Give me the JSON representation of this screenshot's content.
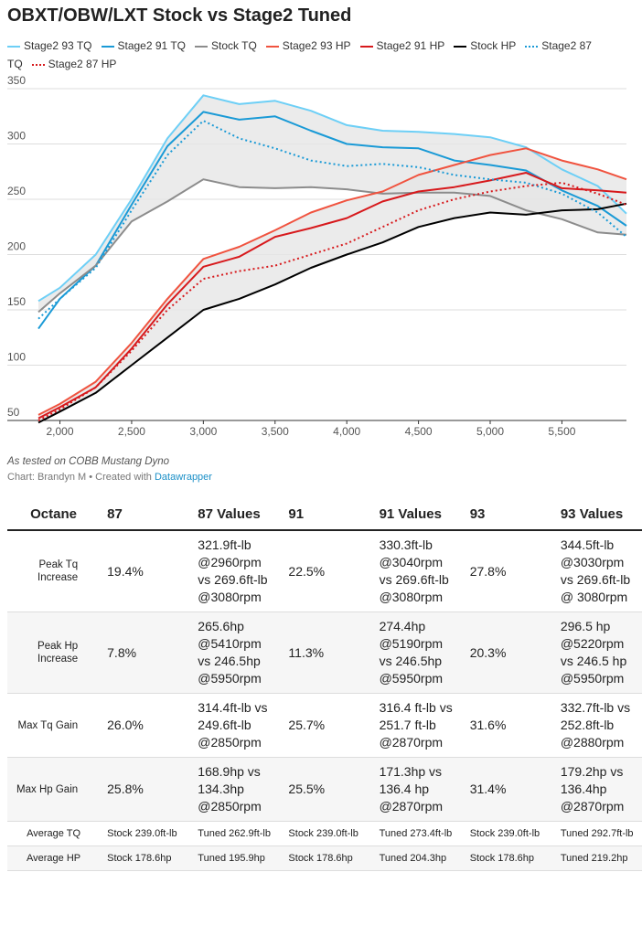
{
  "chart_data": {
    "type": "line",
    "title": "OBXT/OBW/LXT Stock vs Stage2 Tuned",
    "x": [
      1850,
      2000,
      2250,
      2500,
      2750,
      3000,
      3250,
      3500,
      3750,
      4000,
      4250,
      4500,
      4750,
      5000,
      5250,
      5500,
      5750,
      5950
    ],
    "series": [
      {
        "name": "Stage2 93 TQ",
        "color": "#6dcff6",
        "style": "solid",
        "values": [
          158,
          170,
          200,
          250,
          305,
          344,
          336,
          339,
          330,
          317,
          312,
          311,
          309,
          306,
          297,
          277,
          262,
          237
        ]
      },
      {
        "name": "Stage2 91 TQ",
        "color": "#1a9ad6",
        "style": "solid",
        "values": [
          133,
          160,
          190,
          245,
          298,
          329,
          322,
          325,
          312,
          300,
          297,
          296,
          285,
          281,
          276,
          258,
          244,
          226
        ]
      },
      {
        "name": "Stock TQ",
        "color": "#8c8c8c",
        "style": "solid",
        "values": [
          148,
          165,
          190,
          230,
          248,
          268,
          261,
          260,
          261,
          259,
          255,
          256,
          256,
          253,
          240,
          232,
          220,
          218
        ]
      },
      {
        "name": "Stage2 93 HP",
        "color": "#f0533f",
        "style": "solid",
        "values": [
          55,
          65,
          85,
          120,
          160,
          196,
          207,
          222,
          238,
          249,
          257,
          272,
          281,
          290,
          296,
          285,
          277,
          268
        ]
      },
      {
        "name": "Stage2 91 HP",
        "color": "#d7191c",
        "style": "solid",
        "values": [
          52,
          62,
          80,
          115,
          155,
          189,
          198,
          216,
          224,
          233,
          248,
          257,
          261,
          267,
          274,
          260,
          258,
          256
        ]
      },
      {
        "name": "Stock HP",
        "color": "#000000",
        "style": "solid",
        "values": [
          48,
          58,
          75,
          100,
          125,
          150,
          160,
          173,
          188,
          200,
          211,
          225,
          233,
          238,
          236,
          240,
          241,
          246
        ]
      },
      {
        "name": "Stage2 87 TQ",
        "color": "#1a9ad6",
        "style": "dotted",
        "values": [
          142,
          160,
          188,
          240,
          290,
          321,
          305,
          296,
          285,
          280,
          282,
          279,
          272,
          268,
          265,
          255,
          238,
          216
        ]
      },
      {
        "name": "Stage2 87 HP",
        "color": "#d7191c",
        "style": "dotted",
        "values": [
          50,
          60,
          80,
          113,
          150,
          178,
          185,
          190,
          200,
          210,
          225,
          240,
          250,
          257,
          262,
          265,
          255,
          245
        ]
      }
    ],
    "xlim": [
      1850,
      5950
    ],
    "xticks": [
      {
        "value": 2000,
        "label": "2,000"
      },
      {
        "value": 2500,
        "label": "2,500"
      },
      {
        "value": 3000,
        "label": "3,000"
      },
      {
        "value": 3500,
        "label": "3,500"
      },
      {
        "value": 4000,
        "label": "4,000"
      },
      {
        "value": 4500,
        "label": "4,500"
      },
      {
        "value": 5000,
        "label": "5,000"
      },
      {
        "value": 5500,
        "label": "5,500"
      }
    ],
    "ylim": [
      50,
      350
    ],
    "yticks": [
      50,
      100,
      150,
      200,
      250,
      300,
      350
    ],
    "grid": true,
    "note": "As tested on COBB Mustang Dyno",
    "byline": "Chart: Brandyn M • Created with",
    "source_link": "Datawrapper"
  },
  "table": {
    "header": [
      "Octane",
      "87",
      "87 Values",
      "91",
      "91 Values",
      "93",
      "93 Values"
    ],
    "rows": [
      [
        "Peak Tq Increase",
        "19.4%",
        "321.9ft-lb @2960rpm vs 269.6ft-lb @3080rpm",
        "22.5%",
        "330.3ft-lb @3040rpm vs 269.6ft-lb @3080rpm",
        "27.8%",
        "344.5ft-lb @3030rpm vs 269.6ft-lb @ 3080rpm"
      ],
      [
        "Peak Hp Increase",
        "7.8%",
        "265.6hp @5410rpm vs 246.5hp @5950rpm",
        "11.3%",
        "274.4hp @5190rpm vs 246.5hp @5950rpm",
        "20.3%",
        "296.5 hp @5220rpm vs 246.5 hp @5950rpm"
      ],
      [
        "Max Tq Gain",
        "26.0%",
        "314.4ft-lb vs 249.6ft-lb @2850rpm",
        "25.7%",
        "316.4 ft-lb vs 251.7 ft-lb @2870rpm",
        "31.6%",
        "332.7ft-lb vs 252.8ft-lb @2880rpm"
      ],
      [
        "Max Hp Gain",
        "25.8%",
        "168.9hp vs 134.3hp @2850rpm",
        "25.5%",
        "171.3hp vs 136.4 hp @2870rpm",
        "31.4%",
        "179.2hp vs 136.4hp @2870rpm"
      ],
      [
        "Average TQ",
        "Stock 239.0ft-lb",
        "Tuned 262.9ft-lb",
        "Stock 239.0ft-lb",
        "Tuned 273.4ft-lb",
        "Stock 239.0ft-lb",
        "Tuned 292.7ft-lb"
      ],
      [
        "Average HP",
        "Stock 178.6hp",
        "Tuned 195.9hp",
        "Stock 178.6hp",
        "Tuned 204.3hp",
        "Stock 178.6hp",
        "Tuned 219.2hp"
      ]
    ]
  }
}
